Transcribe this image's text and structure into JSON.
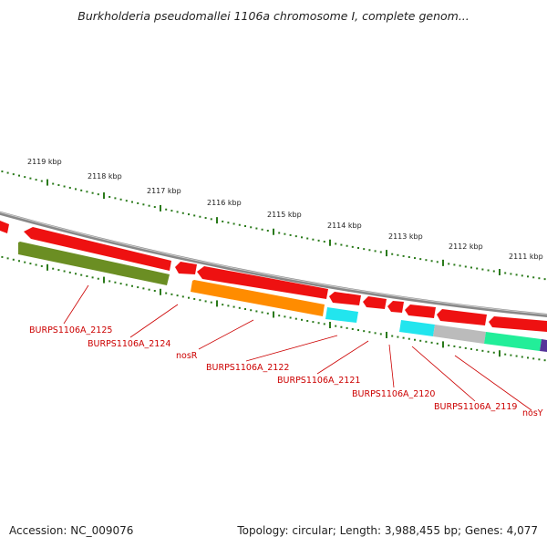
{
  "header": {
    "title": "Burkholderia pseudomallei 1106a chromosome I, complete genom..."
  },
  "footer": {
    "accession": "Accession: NC_009076",
    "topology": "Topology: circular; Length: 3,988,455 bp; Genes: 4,077"
  },
  "ruler": {
    "labels": [
      "2119 kbp",
      "2118 kbp",
      "2117 kbp",
      "2116 kbp",
      "2115 kbp",
      "2114 kbp",
      "2113 kbp",
      "2112 kbp",
      "2111 kbp"
    ]
  },
  "gene_labels": [
    "BURPS1106A_2125",
    "BURPS1106A_2124",
    "nosR",
    "BURPS1106A_2122",
    "BURPS1106A_2121",
    "BURPS1106A_2120",
    "BURPS1106A_2119",
    "nosY"
  ],
  "colors": {
    "cds_red": "#ee1111",
    "olive": "#6b8e23",
    "orange": "#ff8c00",
    "cyan": "#22e5ee",
    "gray": "#bbbbbb",
    "spring_green": "#22ee99",
    "purple": "#553399",
    "backbone": "#888888",
    "ticks": "#2a7a1a",
    "label_red": "#cc0000"
  }
}
